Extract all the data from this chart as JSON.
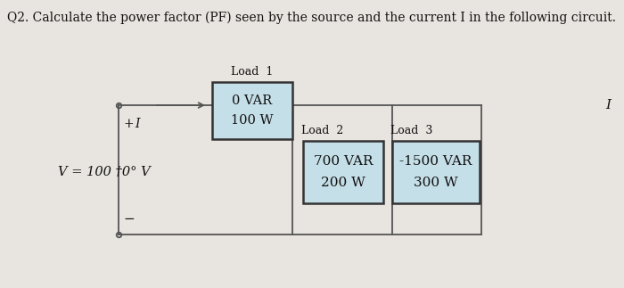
{
  "title": "Q2. Calculate the power factor (PF) seen by the source and the current I in the following circuit.",
  "title_fontsize": 10,
  "bg_color": "#e8e4df",
  "box_fill_load1": "#c5dfe8",
  "box_fill_load2": "#c5dfe8",
  "box_fill_load3": "#c5dfe8",
  "box_edge": "#333333",
  "load1_label": "Load  1",
  "load1_line1": "0 VAR",
  "load1_line2": "100 W",
  "load2_label": "Load  2",
  "load2_line1": "700 VAR",
  "load2_line2": "200 W",
  "load3_label": "Load  3",
  "load3_line1": "-1500 VAR",
  "load3_line2": "300 W",
  "voltage_label": "V = 100 †0° V",
  "current_label": "I",
  "plus_label": "+",
  "minus_label": "−",
  "I_right_label": "I",
  "wire_color": "#555555",
  "text_color": "#111111"
}
